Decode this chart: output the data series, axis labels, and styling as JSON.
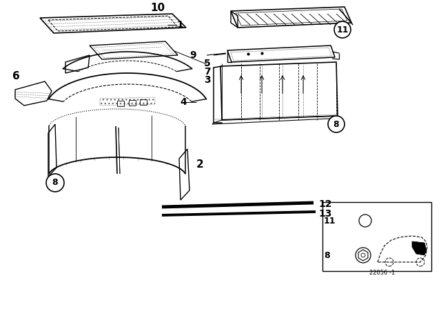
{
  "background_color": "#ffffff",
  "line_color": "#000000",
  "footnote": "22056 -1"
}
